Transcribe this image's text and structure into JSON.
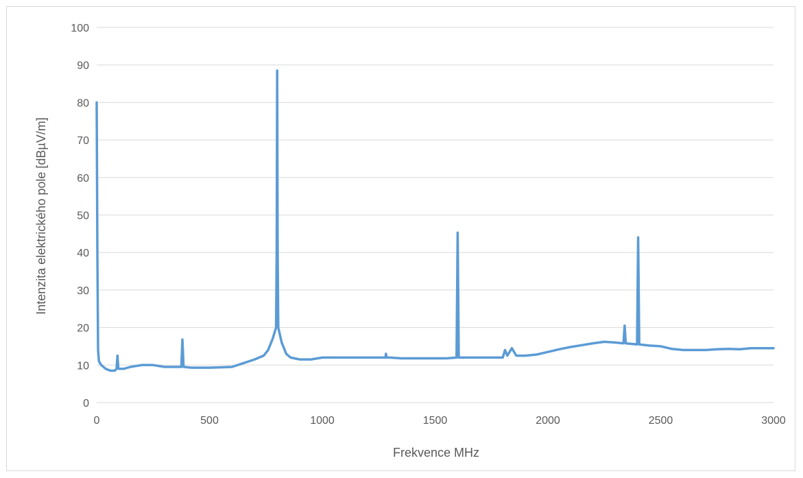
{
  "chart_data": {
    "type": "line",
    "title": "",
    "xlabel": "Frekvence MHz",
    "ylabel": "Intenzita elektrického pole [dBµV/m]",
    "xlim": [
      0,
      3000
    ],
    "ylim": [
      0,
      100
    ],
    "x_ticks": [
      0,
      500,
      1000,
      1500,
      2000,
      2500,
      3000
    ],
    "y_ticks": [
      0,
      10,
      20,
      30,
      40,
      50,
      60,
      70,
      80,
      90,
      100
    ],
    "grid": "horizontal",
    "legend": "none",
    "series": [
      {
        "color": "#5b9bd5",
        "points": [
          [
            0,
            80
          ],
          [
            3,
            40
          ],
          [
            6,
            14
          ],
          [
            10,
            11
          ],
          [
            20,
            10
          ],
          [
            40,
            9
          ],
          [
            60,
            8.5
          ],
          [
            80,
            8.5
          ],
          [
            88,
            9
          ],
          [
            92,
            12.5
          ],
          [
            96,
            9
          ],
          [
            120,
            9
          ],
          [
            150,
            9.5
          ],
          [
            200,
            10
          ],
          [
            250,
            10
          ],
          [
            300,
            9.5
          ],
          [
            350,
            9.5
          ],
          [
            375,
            9.5
          ],
          [
            380,
            16.8
          ],
          [
            385,
            9.5
          ],
          [
            420,
            9.3
          ],
          [
            450,
            9.3
          ],
          [
            500,
            9.3
          ],
          [
            550,
            9.4
          ],
          [
            600,
            9.5
          ],
          [
            650,
            10.5
          ],
          [
            700,
            11.5
          ],
          [
            740,
            12.5
          ],
          [
            760,
            14
          ],
          [
            780,
            17
          ],
          [
            795,
            20
          ],
          [
            798,
            40
          ],
          [
            800,
            88.5
          ],
          [
            802,
            40
          ],
          [
            805,
            20
          ],
          [
            820,
            16
          ],
          [
            840,
            13
          ],
          [
            860,
            12
          ],
          [
            900,
            11.5
          ],
          [
            950,
            11.5
          ],
          [
            1000,
            12
          ],
          [
            1050,
            12
          ],
          [
            1100,
            12
          ],
          [
            1150,
            12
          ],
          [
            1200,
            12
          ],
          [
            1250,
            12
          ],
          [
            1280,
            12
          ],
          [
            1282,
            13
          ],
          [
            1285,
            12
          ],
          [
            1300,
            12
          ],
          [
            1350,
            11.8
          ],
          [
            1400,
            11.8
          ],
          [
            1450,
            11.8
          ],
          [
            1500,
            11.8
          ],
          [
            1550,
            11.8
          ],
          [
            1595,
            12
          ],
          [
            1600,
            45.3
          ],
          [
            1605,
            12
          ],
          [
            1650,
            12
          ],
          [
            1700,
            12
          ],
          [
            1750,
            12
          ],
          [
            1800,
            12
          ],
          [
            1810,
            14
          ],
          [
            1820,
            12.5
          ],
          [
            1840,
            14.5
          ],
          [
            1860,
            12.5
          ],
          [
            1900,
            12.5
          ],
          [
            1950,
            12.8
          ],
          [
            2000,
            13.5
          ],
          [
            2050,
            14.2
          ],
          [
            2100,
            14.8
          ],
          [
            2150,
            15.3
          ],
          [
            2200,
            15.8
          ],
          [
            2250,
            16.2
          ],
          [
            2300,
            16
          ],
          [
            2335,
            15.8
          ],
          [
            2340,
            20.5
          ],
          [
            2345,
            15.8
          ],
          [
            2395,
            15.5
          ],
          [
            2400,
            44
          ],
          [
            2405,
            15.5
          ],
          [
            2450,
            15.2
          ],
          [
            2500,
            15
          ],
          [
            2550,
            14.3
          ],
          [
            2600,
            14
          ],
          [
            2650,
            14
          ],
          [
            2700,
            14
          ],
          [
            2750,
            14.2
          ],
          [
            2800,
            14.3
          ],
          [
            2850,
            14.2
          ],
          [
            2900,
            14.5
          ],
          [
            2950,
            14.5
          ],
          [
            3000,
            14.5
          ]
        ]
      }
    ]
  }
}
